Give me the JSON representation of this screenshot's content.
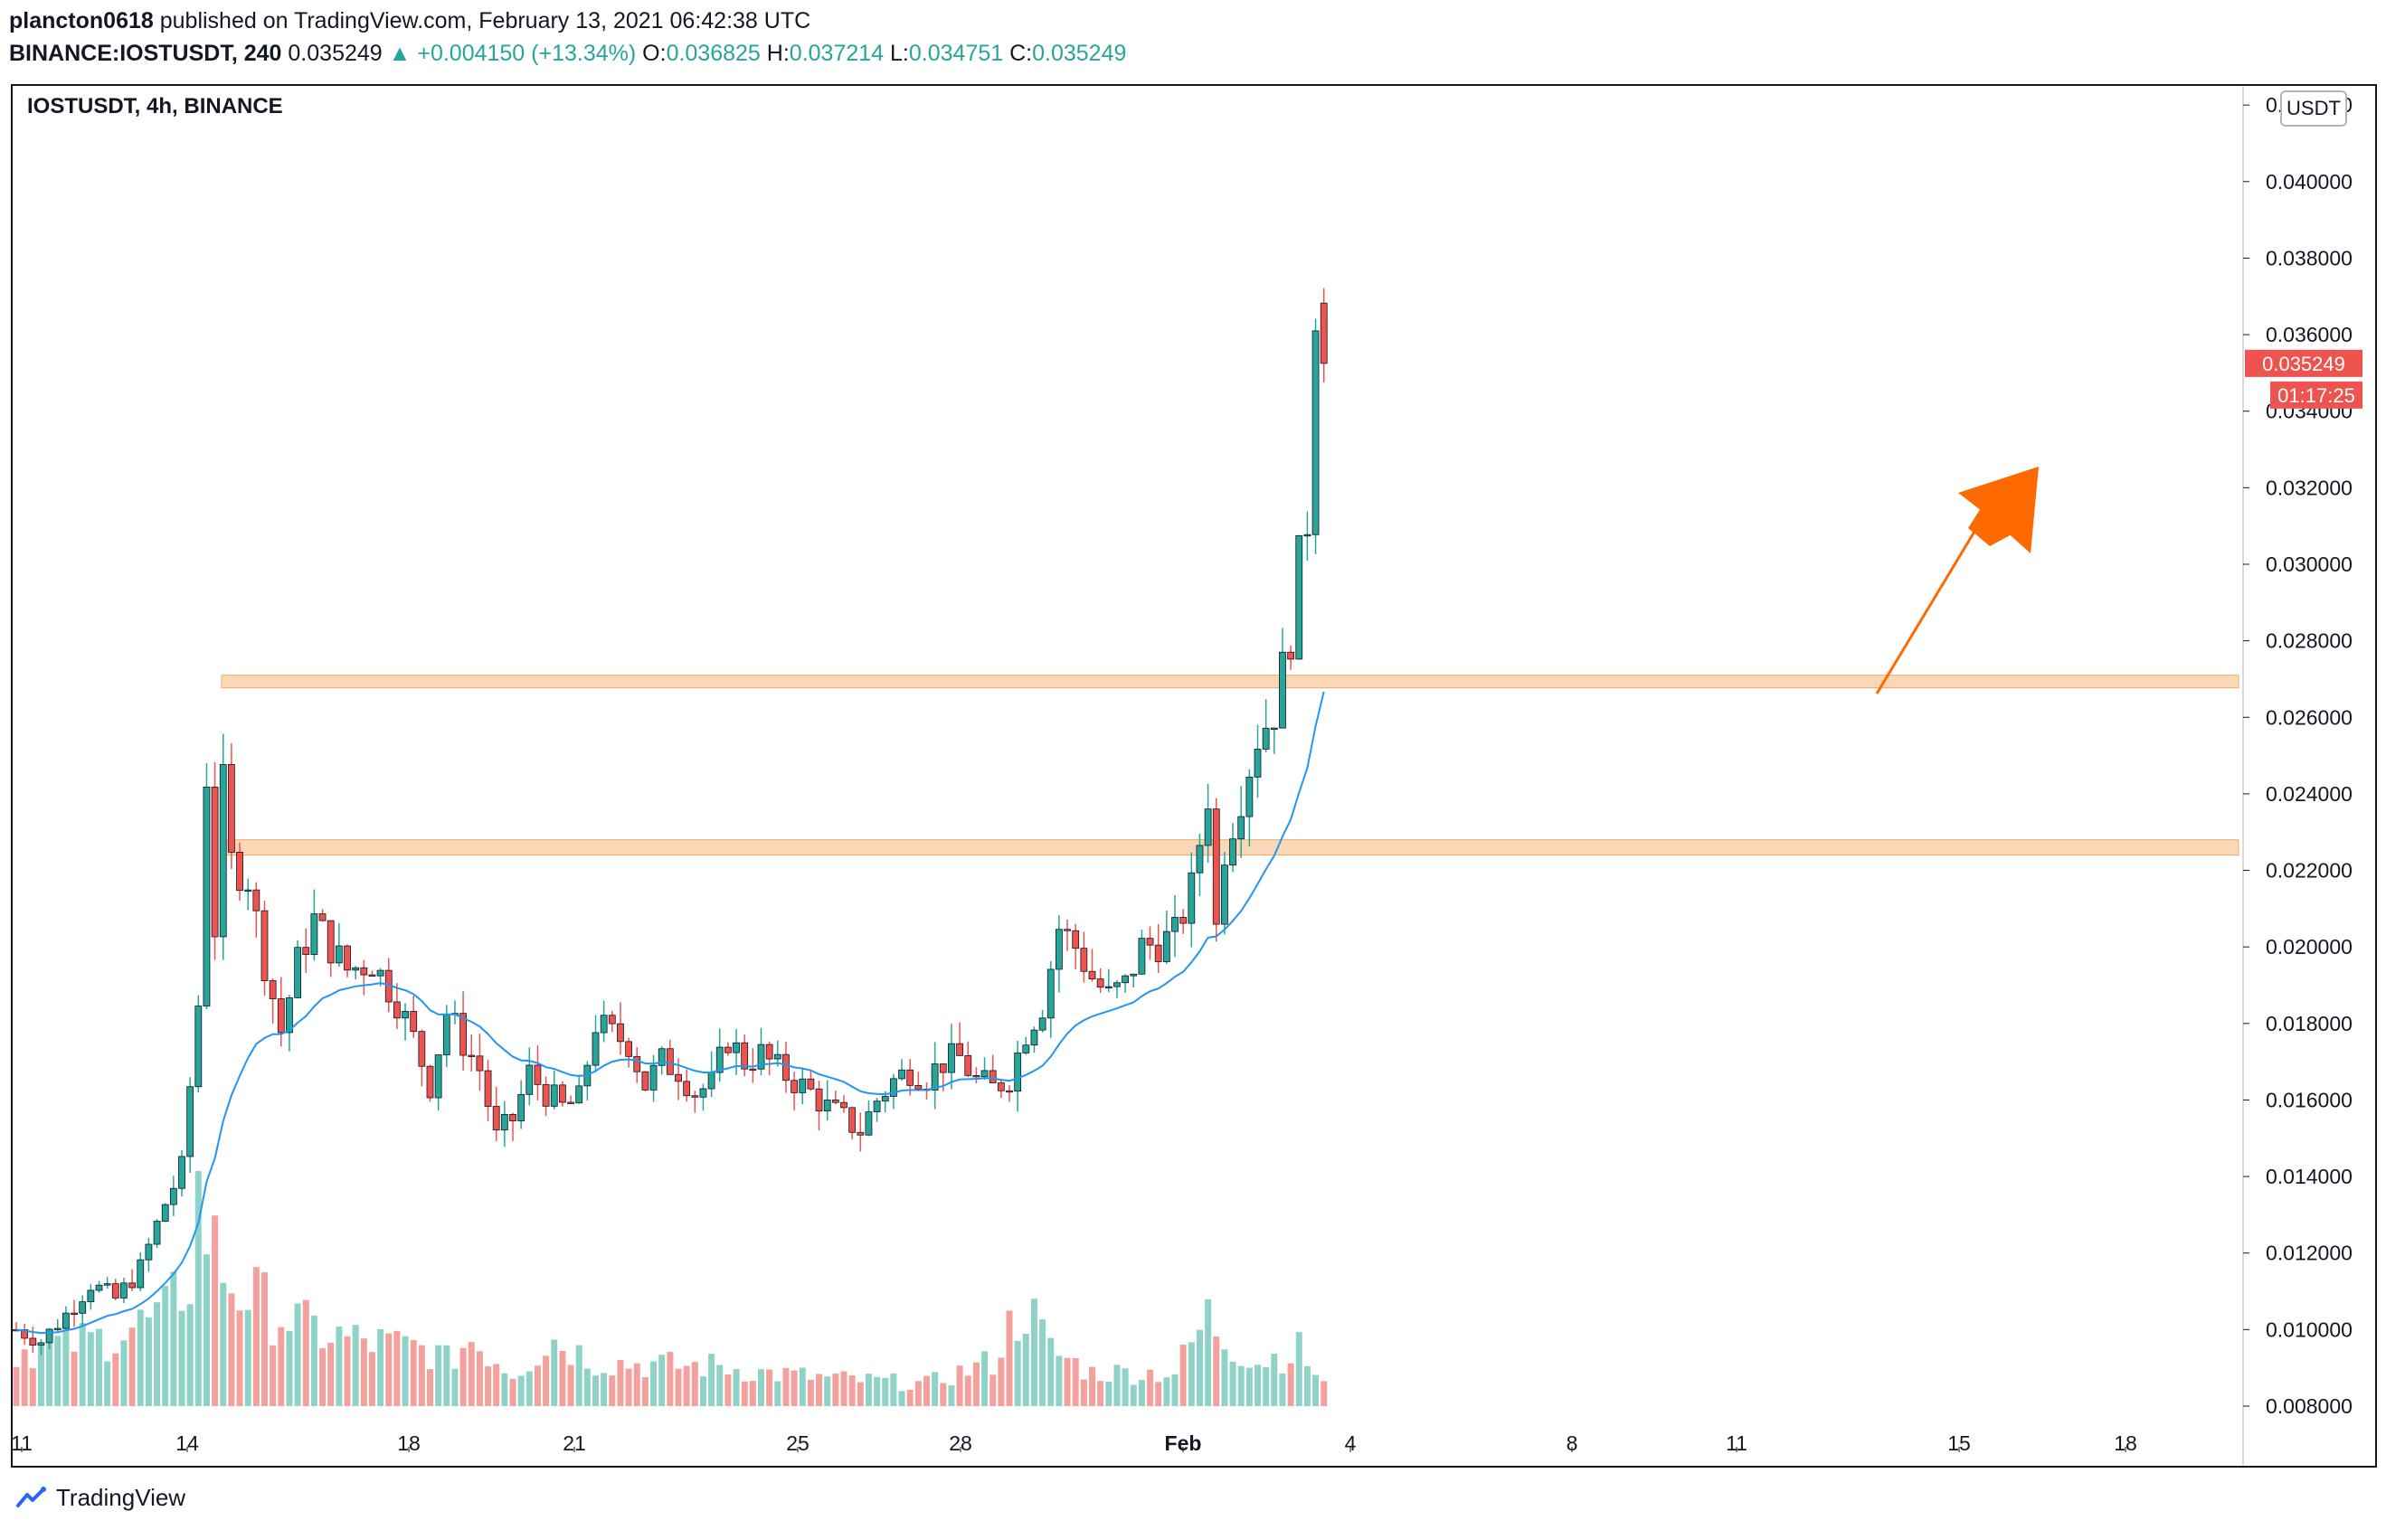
{
  "header": {
    "publisher": "plancton0618",
    "published_text": "published on TradingView.com, February 13, 2021 06:42:38 UTC",
    "symbol": "BINANCE:IOSTUSDT, 240",
    "last": "0.035249",
    "change": "+0.004150 (+13.34%)",
    "o_label": "O:",
    "o": "0.036825",
    "h_label": "H:",
    "h": "0.037214",
    "l_label": "L:",
    "l": "0.034751",
    "c_label": "C:",
    "c": "0.035249"
  },
  "chart_label": "IOSTUSDT, 4h, BINANCE",
  "unit": "USDT",
  "price_tag": "0.035249",
  "countdown_tag": "01:17:25",
  "footer": {
    "brand": "TradingView"
  },
  "colors": {
    "up": "#26a69a",
    "down": "#ef5350",
    "ma": "#2196f3",
    "zone": "#f7c28f",
    "arrow": "#ff6a00"
  },
  "chart_data": {
    "type": "candlestick",
    "interval": "4h",
    "ylim": [
      0.008,
      0.0425
    ],
    "yticks": [
      "0.042000",
      "0.040000",
      "0.038000",
      "0.036000",
      "0.034000",
      "0.032000",
      "0.030000",
      "0.028000",
      "0.026000",
      "0.024000",
      "0.022000",
      "0.020000",
      "0.018000",
      "0.016000",
      "0.014000",
      "0.012000",
      "0.010000",
      "0.008000"
    ],
    "xticks": [
      "11",
      "14",
      "18",
      "21",
      "25",
      "28",
      "Feb",
      "4",
      "8",
      "11",
      "15",
      "18"
    ],
    "zones": [
      [
        0.0268,
        0.0271
      ],
      [
        0.0224,
        0.0228
      ]
    ],
    "close_path": [
      [
        0,
        0.01
      ],
      [
        3,
        0.0097
      ],
      [
        6,
        0.0104
      ],
      [
        9,
        0.0112
      ],
      [
        12,
        0.0108
      ],
      [
        15,
        0.0116
      ],
      [
        18,
        0.0133
      ],
      [
        20,
        0.0142
      ],
      [
        22,
        0.0185
      ],
      [
        23,
        0.0245
      ],
      [
        24,
        0.0205
      ],
      [
        25,
        0.0242
      ],
      [
        26,
        0.0222
      ],
      [
        28,
        0.0218
      ],
      [
        30,
        0.0196
      ],
      [
        32,
        0.0178
      ],
      [
        34,
        0.0196
      ],
      [
        36,
        0.0207
      ],
      [
        38,
        0.02
      ],
      [
        40,
        0.0194
      ],
      [
        43,
        0.0196
      ],
      [
        46,
        0.0186
      ],
      [
        48,
        0.0176
      ],
      [
        50,
        0.0164
      ],
      [
        52,
        0.0183
      ],
      [
        54,
        0.0175
      ],
      [
        56,
        0.0168
      ],
      [
        58,
        0.015
      ],
      [
        60,
        0.0155
      ],
      [
        62,
        0.0167
      ],
      [
        64,
        0.0162
      ],
      [
        66,
        0.0158
      ],
      [
        68,
        0.016
      ],
      [
        70,
        0.018
      ],
      [
        72,
        0.0177
      ],
      [
        74,
        0.0175
      ],
      [
        76,
        0.0164
      ],
      [
        78,
        0.017
      ],
      [
        80,
        0.0168
      ],
      [
        82,
        0.0162
      ],
      [
        84,
        0.0164
      ],
      [
        86,
        0.0176
      ],
      [
        88,
        0.017
      ],
      [
        90,
        0.0172
      ],
      [
        92,
        0.0168
      ],
      [
        94,
        0.0165
      ],
      [
        96,
        0.0162
      ],
      [
        98,
        0.0158
      ],
      [
        100,
        0.0155
      ],
      [
        102,
        0.0152
      ],
      [
        104,
        0.016
      ],
      [
        106,
        0.0165
      ],
      [
        108,
        0.0168
      ],
      [
        110,
        0.0166
      ],
      [
        112,
        0.017
      ],
      [
        114,
        0.0171
      ],
      [
        116,
        0.0165
      ],
      [
        118,
        0.0163
      ],
      [
        120,
        0.0166
      ],
      [
        122,
        0.0178
      ],
      [
        124,
        0.0185
      ],
      [
        126,
        0.0205
      ],
      [
        128,
        0.02
      ],
      [
        130,
        0.0192
      ],
      [
        132,
        0.0187
      ],
      [
        134,
        0.019
      ],
      [
        136,
        0.02
      ],
      [
        138,
        0.0201
      ],
      [
        140,
        0.0203
      ],
      [
        142,
        0.0215
      ],
      [
        144,
        0.024
      ],
      [
        145,
        0.0205
      ],
      [
        146,
        0.0226
      ],
      [
        148,
        0.024
      ],
      [
        150,
        0.0255
      ],
      [
        152,
        0.0262
      ],
      [
        153,
        0.0272
      ],
      [
        154,
        0.0282
      ],
      [
        155,
        0.03
      ],
      [
        156,
        0.0312
      ],
      [
        157,
        0.0368
      ],
      [
        158,
        0.035249
      ]
    ],
    "volume_path": [
      [
        0,
        0.25
      ],
      [
        10,
        0.3
      ],
      [
        18,
        0.4
      ],
      [
        21,
        0.6
      ],
      [
        22,
        1.0
      ],
      [
        23,
        0.8
      ],
      [
        24,
        0.7
      ],
      [
        26,
        0.55
      ],
      [
        30,
        0.45
      ],
      [
        35,
        0.35
      ],
      [
        40,
        0.3
      ],
      [
        50,
        0.25
      ],
      [
        52,
        0.2
      ],
      [
        55,
        0.3
      ],
      [
        60,
        0.15
      ],
      [
        65,
        0.3
      ],
      [
        70,
        0.2
      ],
      [
        80,
        0.18
      ],
      [
        85,
        0.18
      ],
      [
        90,
        0.15
      ],
      [
        100,
        0.12
      ],
      [
        110,
        0.1
      ],
      [
        118,
        0.2
      ],
      [
        120,
        0.35
      ],
      [
        122,
        0.45
      ],
      [
        125,
        0.25
      ],
      [
        130,
        0.15
      ],
      [
        140,
        0.15
      ],
      [
        144,
        0.4
      ],
      [
        146,
        0.3
      ],
      [
        150,
        0.2
      ],
      [
        155,
        0.25
      ],
      [
        158,
        0.1
      ]
    ]
  }
}
